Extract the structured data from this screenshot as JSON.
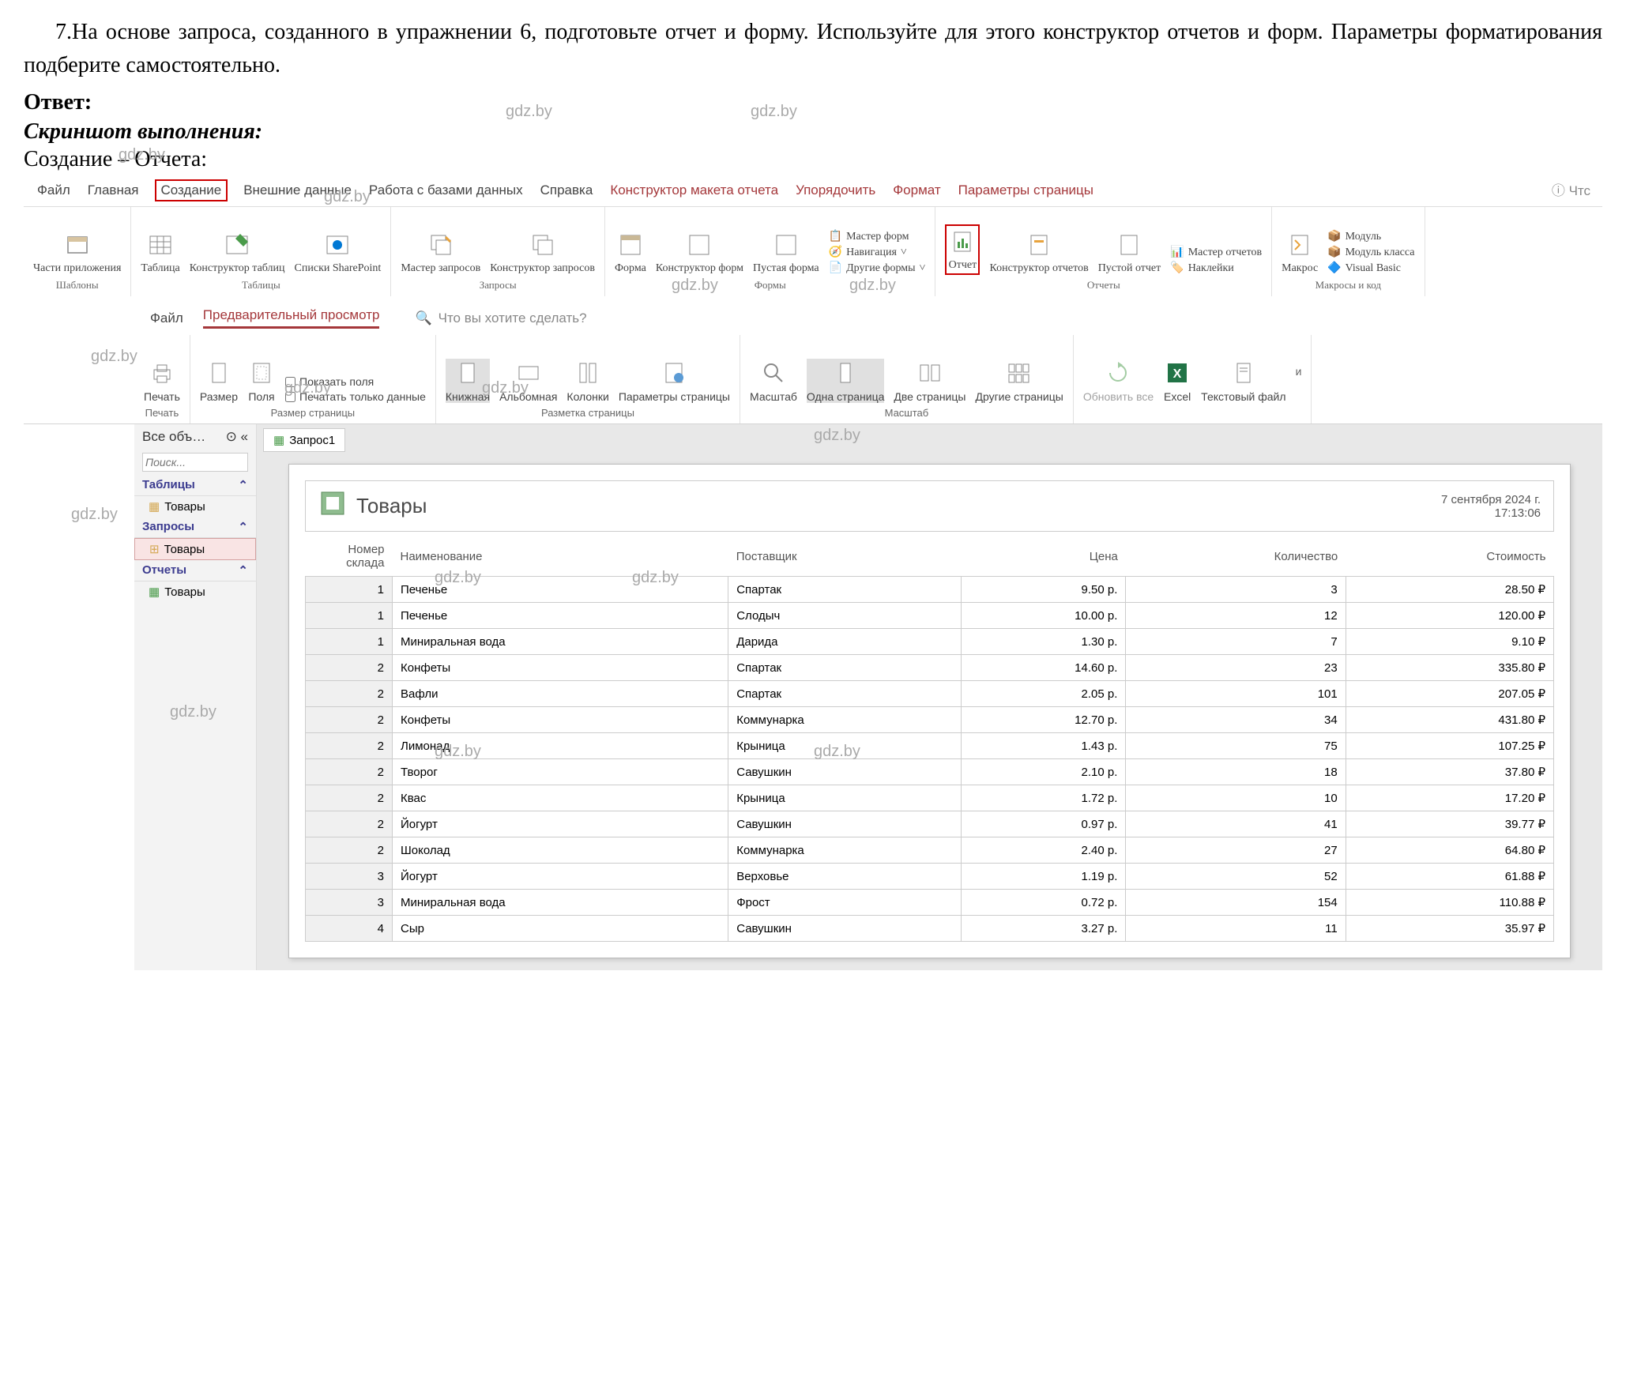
{
  "question": "7.На основе запроса, созданного в упражнении 6, подготовьте отчет и форму. Используйте для этого конструктор отчетов и форм. Параметры форматирования подберите самостоятельно.",
  "answer_label": "Ответ:",
  "screenshot_label": "Скриншот выполнения:",
  "creation_label": "Создание – Отчета:",
  "watermark_text": "gdz.by",
  "ribbon1": {
    "tabs": [
      "Файл",
      "Главная",
      "Создание",
      "Внешние данные",
      "Работа с базами данных",
      "Справка",
      "Конструктор макета отчета",
      "Упорядочить",
      "Формат",
      "Параметры страницы"
    ],
    "more": "Чтс",
    "groups": {
      "templates": {
        "label": "Шаблоны",
        "items": [
          "Части приложения"
        ]
      },
      "tables": {
        "label": "Таблицы",
        "items": [
          "Таблица",
          "Конструктор таблиц",
          "Списки SharePoint"
        ]
      },
      "queries": {
        "label": "Запросы",
        "items": [
          "Мастер запросов",
          "Конструктор запросов"
        ]
      },
      "forms": {
        "label": "Формы",
        "items": [
          "Форма",
          "Конструктор форм",
          "Пустая форма"
        ],
        "extra": [
          "Мастер форм",
          "Навигация",
          "Другие формы"
        ]
      },
      "reports": {
        "label": "Отчеты",
        "items": [
          "Отчет",
          "Конструктор отчетов",
          "Пустой отчет"
        ],
        "extra": [
          "Мастер отчетов",
          "Наклейки"
        ]
      },
      "macros": {
        "label": "Макросы и код",
        "items": [
          "Макрос"
        ],
        "extra": [
          "Модуль",
          "Модуль класса",
          "Visual Basic"
        ]
      }
    }
  },
  "ribbon2": {
    "tabs": [
      "Файл",
      "Предварительный просмотр"
    ],
    "search_placeholder": "Что вы хотите сделать?",
    "groups": {
      "print": {
        "label": "Печать",
        "items": [
          "Печать"
        ]
      },
      "pagesize": {
        "label": "Размер страницы",
        "items": [
          "Размер",
          "Поля"
        ],
        "checks": [
          "Показать поля",
          "Печатать только данные"
        ]
      },
      "layout": {
        "label": "Разметка страницы",
        "items": [
          "Книжная",
          "Альбомная",
          "Колонки",
          "Параметры страницы"
        ]
      },
      "zoom": {
        "label": "Масштаб",
        "items": [
          "Масштаб",
          "Одна страница",
          "Две страницы",
          "Другие страницы"
        ]
      },
      "data": {
        "label": "",
        "items": [
          "Обновить все",
          "Excel",
          "Текстовый файл"
        ],
        "more": "и"
      }
    }
  },
  "nav": {
    "header": "Все объ…",
    "search": "Поиск...",
    "sections": [
      {
        "title": "Таблицы",
        "items": [
          "Товары"
        ]
      },
      {
        "title": "Запросы",
        "items": [
          "Товары"
        ],
        "selected": 0
      },
      {
        "title": "Отчеты",
        "items": [
          "Товары"
        ]
      }
    ]
  },
  "report": {
    "tab": "Запрос1",
    "title": "Товары",
    "date": "7 сентября 2024 г.",
    "time": "17:13:06",
    "columns": [
      "Номер склада",
      "Наименование",
      "Поставщик",
      "Цена",
      "Количество",
      "Стоимость"
    ],
    "rows": [
      [
        "1",
        "Печенье",
        "Спартак",
        "9.50 р.",
        "3",
        "28.50 ₽"
      ],
      [
        "1",
        "Печенье",
        "Слодыч",
        "10.00 р.",
        "12",
        "120.00 ₽"
      ],
      [
        "1",
        "Миниральная вода",
        "Дарида",
        "1.30 р.",
        "7",
        "9.10 ₽"
      ],
      [
        "2",
        "Конфеты",
        "Спартак",
        "14.60 р.",
        "23",
        "335.80 ₽"
      ],
      [
        "2",
        "Вафли",
        "Спартак",
        "2.05 р.",
        "101",
        "207.05 ₽"
      ],
      [
        "2",
        "Конфеты",
        "Коммунарка",
        "12.70 р.",
        "34",
        "431.80 ₽"
      ],
      [
        "2",
        "Лимонад",
        "Крыница",
        "1.43 р.",
        "75",
        "107.25 ₽"
      ],
      [
        "2",
        "Творог",
        "Савушкин",
        "2.10 р.",
        "18",
        "37.80 ₽"
      ],
      [
        "2",
        "Квас",
        "Крыница",
        "1.72 р.",
        "10",
        "17.20 ₽"
      ],
      [
        "2",
        "Йогурт",
        "Савушкин",
        "0.97 р.",
        "41",
        "39.77 ₽"
      ],
      [
        "2",
        "Шоколад",
        "Коммунарка",
        "2.40 р.",
        "27",
        "64.80 ₽"
      ],
      [
        "3",
        "Йогурт",
        "Верховье",
        "1.19 р.",
        "52",
        "61.88 ₽"
      ],
      [
        "3",
        "Миниральная вода",
        "Фрост",
        "0.72 р.",
        "154",
        "110.88 ₽"
      ],
      [
        "4",
        "Сыр",
        "Савушкин",
        "3.27 р.",
        "11",
        "35.97 ₽"
      ]
    ]
  },
  "colors": {
    "red_highlight": "#c00000",
    "access_red": "#a4373a",
    "grid": "#cccccc",
    "nav_bg": "#f3f3f3"
  }
}
